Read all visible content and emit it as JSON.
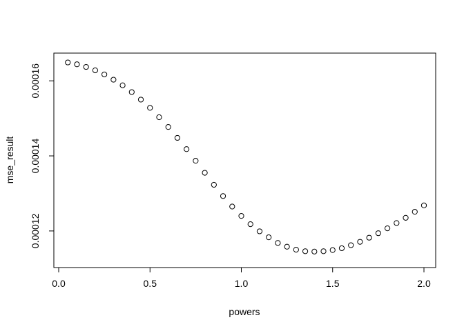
{
  "chart_data": {
    "type": "scatter",
    "xlabel": "powers",
    "ylabel": "mse_result",
    "xlim": [
      0.0,
      2.0
    ],
    "ylim": [
      0.000113,
      0.000166
    ],
    "x_ticks": [
      0.0,
      0.5,
      1.0,
      1.5,
      2.0
    ],
    "x_tick_labels": [
      "0.0",
      "0.5",
      "1.0",
      "1.5",
      "2.0"
    ],
    "y_ticks": [
      0.00012,
      0.00014,
      0.00016
    ],
    "y_tick_labels": [
      "0.00012",
      "0.00014",
      "0.00016"
    ],
    "grid": false,
    "legend": "none",
    "marker": "open-circle",
    "x": [
      0.05,
      0.1,
      0.15,
      0.2,
      0.25,
      0.3,
      0.35,
      0.4,
      0.45,
      0.5,
      0.55,
      0.6,
      0.65,
      0.7,
      0.75,
      0.8,
      0.85,
      0.9,
      0.95,
      1.0,
      1.05,
      1.1,
      1.15,
      1.2,
      1.25,
      1.3,
      1.35,
      1.4,
      1.45,
      1.5,
      1.55,
      1.6,
      1.65,
      1.7,
      1.75,
      1.8,
      1.85,
      1.9,
      1.95,
      2.0
    ],
    "y": [
      0.0001649,
      0.0001644,
      0.0001637,
      0.0001628,
      0.0001617,
      0.0001603,
      0.0001588,
      0.000157,
      0.000155,
      0.0001528,
      0.0001503,
      0.0001477,
      0.0001448,
      0.0001418,
      0.0001387,
      0.0001355,
      0.0001323,
      0.0001293,
      0.0001265,
      0.000124,
      0.0001218,
      0.0001199,
      0.0001183,
      0.0001168,
      0.0001158,
      0.000115,
      0.0001146,
      0.0001145,
      0.0001146,
      0.0001149,
      0.0001154,
      0.0001162,
      0.0001171,
      0.0001182,
      0.0001194,
      0.0001207,
      0.0001221,
      0.0001235,
      0.0001251,
      0.0001268
    ]
  }
}
